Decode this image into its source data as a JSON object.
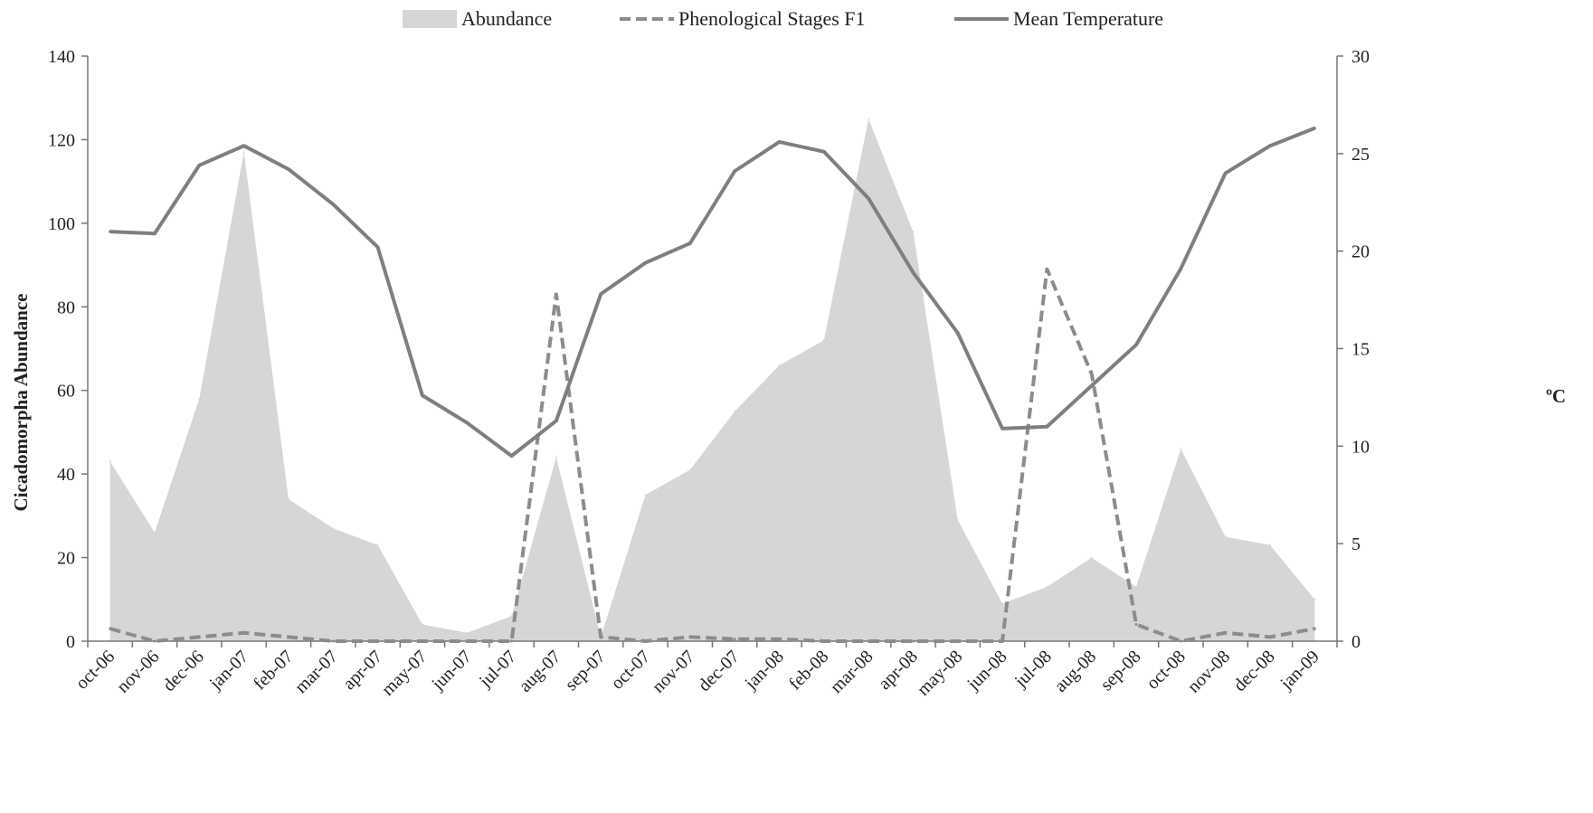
{
  "chart_data": {
    "type": "area",
    "title": "",
    "ylabel": "Cicadomorpha Abundance",
    "y2label": "ºC",
    "ylim": [
      0,
      140
    ],
    "yticks": [
      0,
      20,
      40,
      60,
      80,
      100,
      120,
      140
    ],
    "y2lim": [
      0,
      30
    ],
    "y2ticks": [
      0,
      5,
      10,
      15,
      20,
      25,
      30
    ],
    "grid": false,
    "legend_position": "top",
    "categories": [
      "oct-06",
      "nov-06",
      "dec-06",
      "jan-07",
      "feb-07",
      "mar-07",
      "apr-07",
      "may-07",
      "jun-07",
      "jul-07",
      "aug-07",
      "sep-07",
      "oct-07",
      "nov-07",
      "dec-07",
      "jan-08",
      "feb-08",
      "mar-08",
      "apr-08",
      "may-08",
      "jun-08",
      "jul-08",
      "aug-08",
      "sep-08",
      "oct-08",
      "nov-08",
      "dec-08",
      "jan-09"
    ],
    "series": [
      {
        "name": "Abundance",
        "type": "area",
        "axis": "left",
        "color": "#d6d6d6",
        "values": [
          43,
          26,
          58,
          117,
          34,
          27,
          23,
          4,
          2,
          6,
          44,
          1,
          35,
          41,
          55,
          66,
          72,
          125,
          98,
          29,
          9,
          13,
          20,
          13,
          46,
          25,
          23,
          10
        ]
      },
      {
        "name": "Phenological Stages F1",
        "type": "line",
        "style": "dashed",
        "axis": "left",
        "color": "#8c8c8c",
        "values": [
          3,
          0,
          1,
          2,
          1,
          0,
          0,
          0,
          0,
          0,
          83,
          1,
          0,
          1,
          0.5,
          0.5,
          0,
          0,
          0,
          0,
          0,
          89,
          64,
          4,
          0,
          2,
          1,
          3
        ]
      },
      {
        "name": "Mean Temperature",
        "type": "line",
        "style": "solid",
        "axis": "right",
        "color": "#7f7f7f",
        "values": [
          21.0,
          20.9,
          24.4,
          25.4,
          24.2,
          22.4,
          20.2,
          12.6,
          11.2,
          9.5,
          11.3,
          17.8,
          19.4,
          20.4,
          24.1,
          25.6,
          25.1,
          22.7,
          18.9,
          15.8,
          10.9,
          11.0,
          13.1,
          15.2,
          19.1,
          24.0,
          25.4,
          26.3
        ]
      }
    ]
  }
}
